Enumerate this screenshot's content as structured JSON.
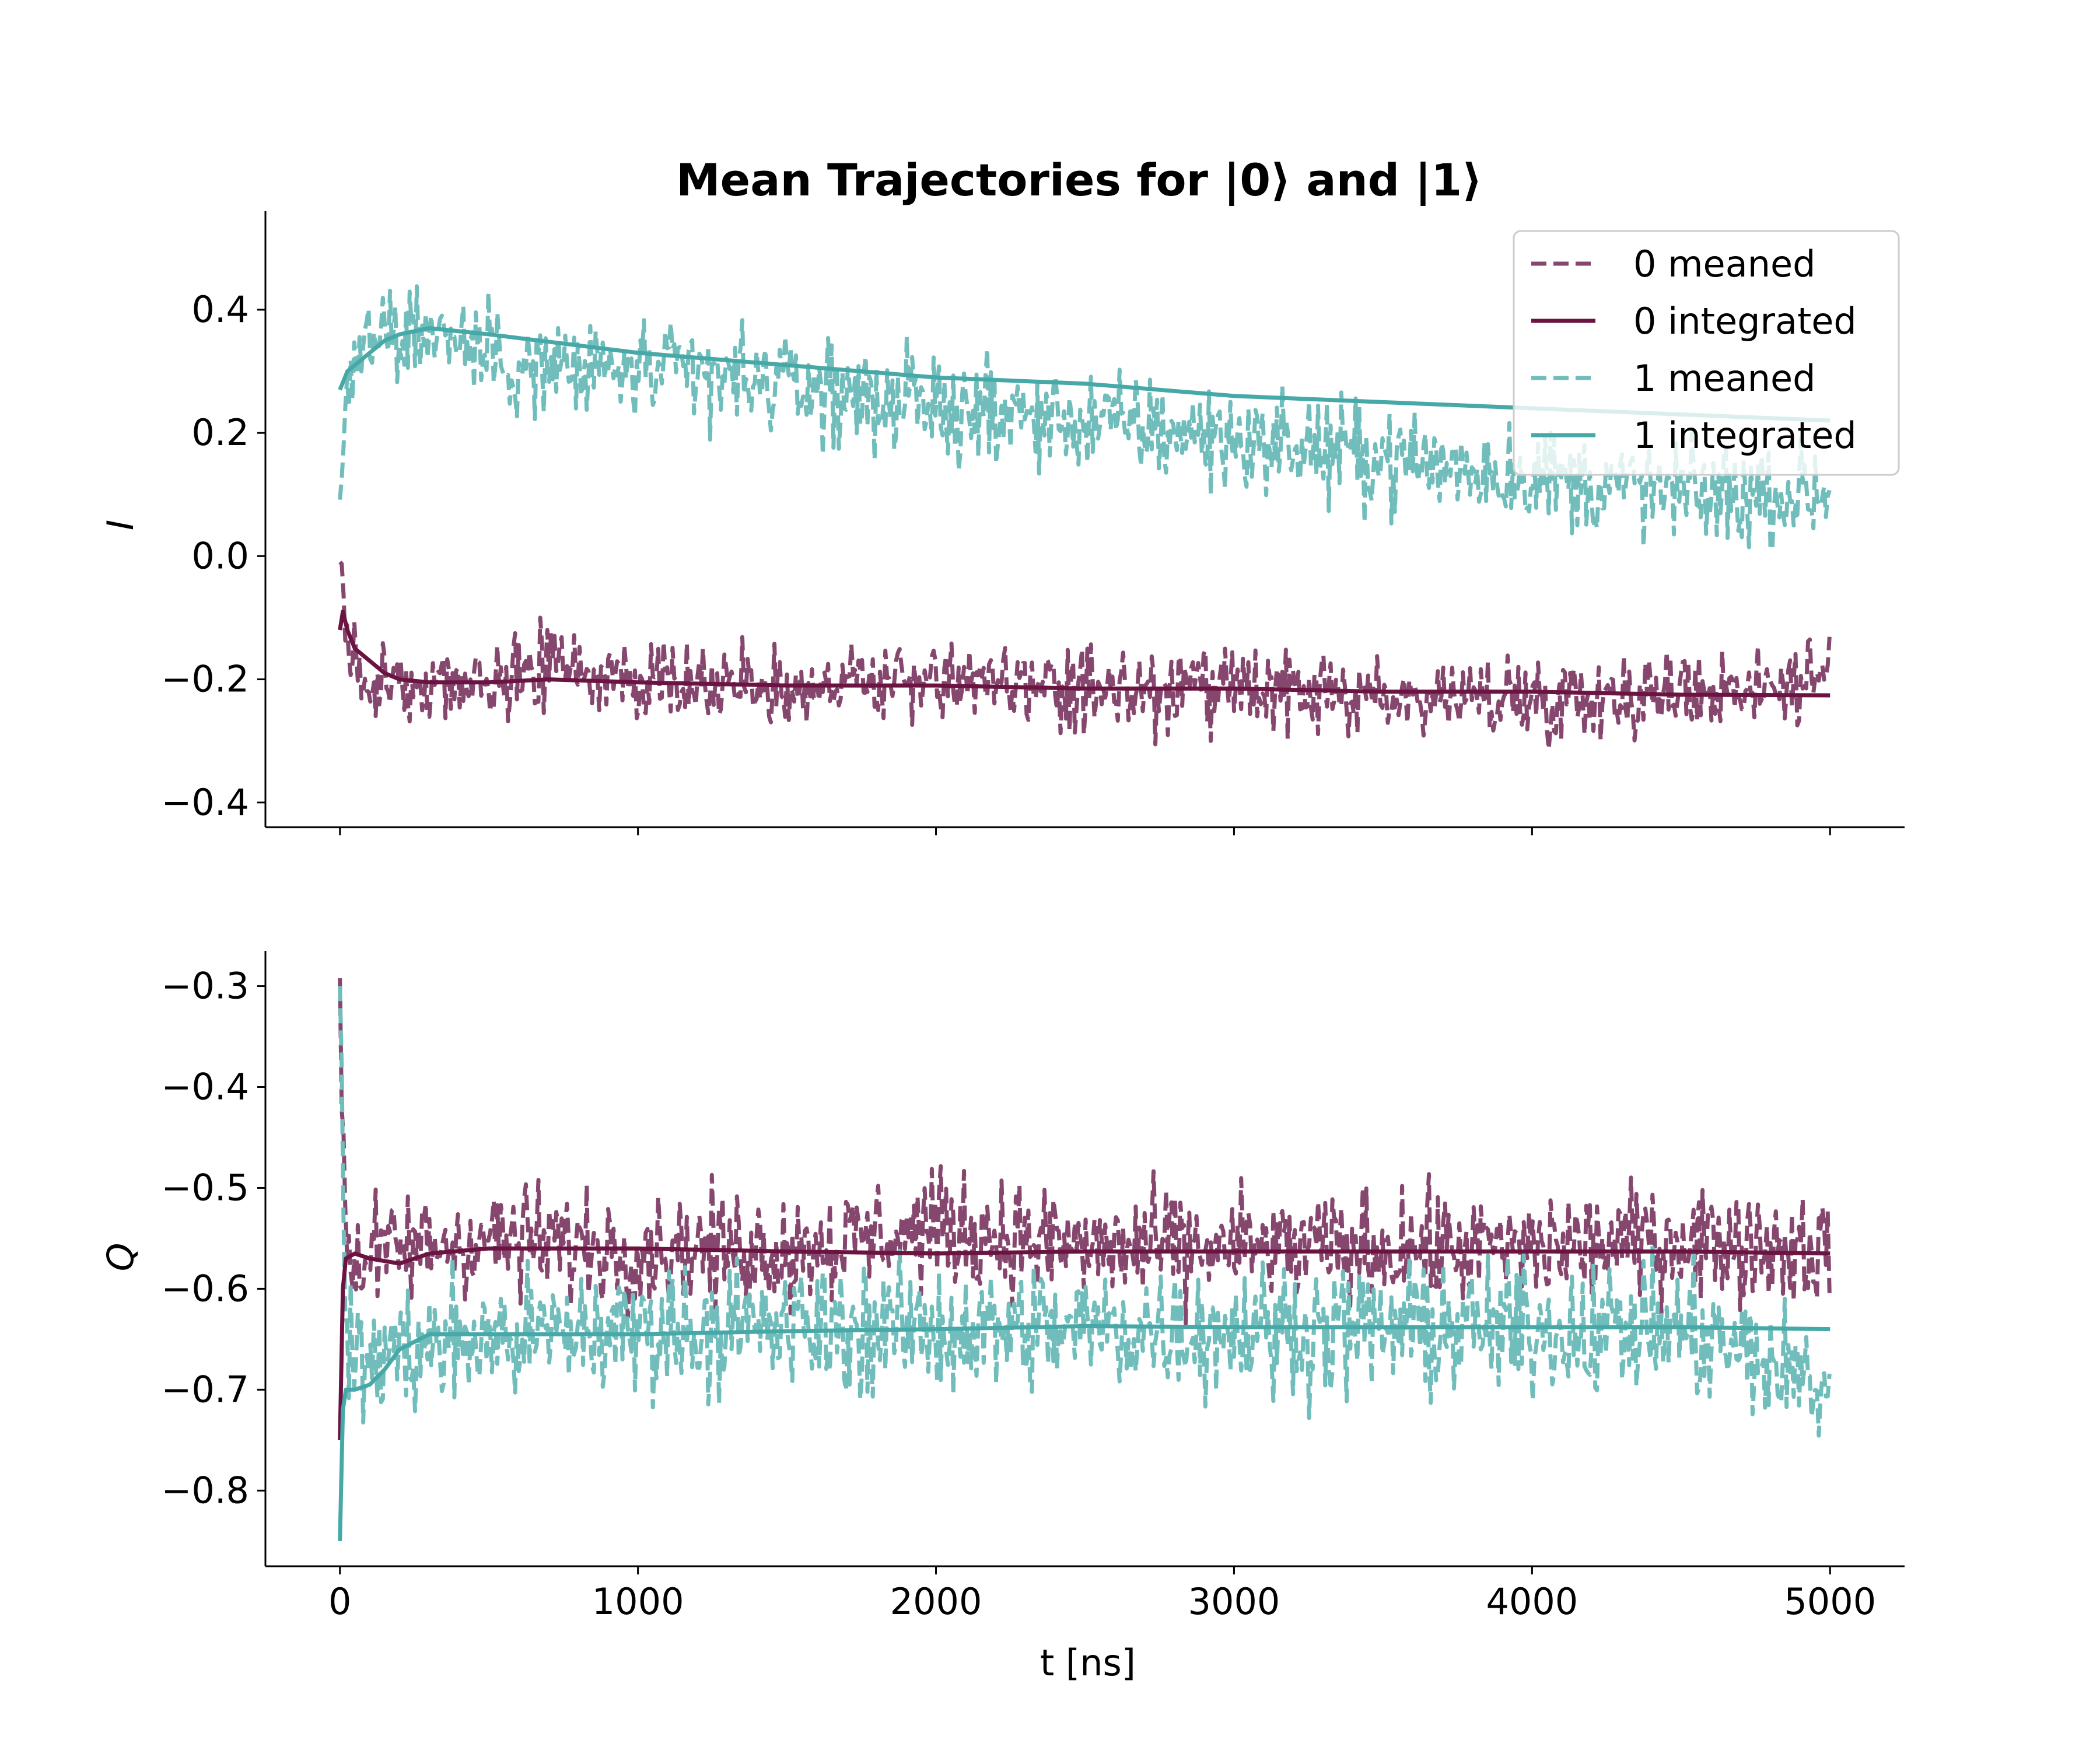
{
  "chart_data": {
    "type": "line",
    "title": "Mean Trajectories for |0⟩ and |1⟩",
    "xlabel": "t [ns]",
    "xlim": [
      -250,
      5250
    ],
    "xticks": [
      0,
      1000,
      2000,
      3000,
      4000,
      5000
    ],
    "grid": false,
    "legend_position": "top-right",
    "colors": {
      "state0": "#6b1442",
      "state0_dashed": "#86476e",
      "state1": "#46a9a8",
      "state1_dashed": "#70bdbb"
    },
    "legend": [
      {
        "label": "0 meaned",
        "style": "dashed",
        "series": "0"
      },
      {
        "label": "0 integrated",
        "style": "solid",
        "series": "0"
      },
      {
        "label": "1 meaned",
        "style": "dashed",
        "series": "1"
      },
      {
        "label": "1 integrated",
        "style": "solid",
        "series": "1"
      }
    ],
    "panels": [
      {
        "id": "I",
        "ylabel": "I",
        "ylim": [
          -0.44,
          0.56
        ],
        "yticks": [
          {
            "value": 0.4,
            "label": "0.4"
          },
          {
            "value": 0.2,
            "label": "0.2"
          },
          {
            "value": 0.0,
            "label": "0.0"
          },
          {
            "value": -0.2,
            "label": "−0.2"
          },
          {
            "value": -0.4,
            "label": "−0.4"
          }
        ],
        "series": [
          {
            "name": "0 meaned",
            "state": "0",
            "style": "dashed",
            "x": [
              0,
              25,
              50,
              100,
              150,
              200,
              300,
              500,
              700,
              1000,
              1500,
              2000,
              2500,
              3000,
              3500,
              4000,
              4500,
              5000
            ],
            "y": [
              -0.02,
              -0.12,
              -0.17,
              -0.22,
              -0.2,
              -0.21,
              -0.22,
              -0.2,
              -0.18,
              -0.2,
              -0.21,
              -0.2,
              -0.22,
              -0.22,
              -0.23,
              -0.23,
              -0.22,
              -0.2
            ],
            "noise_amplitude": 0.07
          },
          {
            "name": "0 integrated",
            "state": "0",
            "style": "solid",
            "x": [
              0,
              10,
              25,
              50,
              100,
              150,
              200,
              300,
              500,
              700,
              1000,
              1500,
              2000,
              2500,
              3000,
              3500,
              4000,
              4500,
              5000
            ],
            "y": [
              -0.12,
              -0.09,
              -0.12,
              -0.15,
              -0.17,
              -0.19,
              -0.2,
              -0.205,
              -0.205,
              -0.2,
              -0.205,
              -0.21,
              -0.21,
              -0.215,
              -0.215,
              -0.22,
              -0.22,
              -0.225,
              -0.226
            ],
            "noise_amplitude": 0
          },
          {
            "name": "1 meaned",
            "state": "1",
            "style": "dashed",
            "x": [
              0,
              25,
              50,
              100,
              150,
              200,
              300,
              500,
              700,
              1000,
              1500,
              2000,
              2500,
              3000,
              3500,
              4000,
              4500,
              5000
            ],
            "y": [
              0.1,
              0.28,
              0.31,
              0.37,
              0.38,
              0.36,
              0.37,
              0.33,
              0.3,
              0.3,
              0.28,
              0.24,
              0.22,
              0.19,
              0.16,
              0.13,
              0.1,
              0.1
            ],
            "noise_amplitude": 0.09
          },
          {
            "name": "1 integrated",
            "state": "1",
            "style": "solid",
            "x": [
              0,
              25,
              50,
              100,
              150,
              200,
              300,
              500,
              1000,
              1500,
              2000,
              2500,
              3000,
              3500,
              4000,
              4500,
              5000
            ],
            "y": [
              0.27,
              0.3,
              0.31,
              0.33,
              0.35,
              0.36,
              0.37,
              0.36,
              0.33,
              0.31,
              0.29,
              0.28,
              0.26,
              0.25,
              0.24,
              0.23,
              0.22
            ],
            "noise_amplitude": 0
          }
        ]
      },
      {
        "id": "Q",
        "ylabel": "Q",
        "ylim": [
          -0.875,
          -0.265
        ],
        "yticks": [
          {
            "value": -0.3,
            "label": "−0.3"
          },
          {
            "value": -0.4,
            "label": "−0.4"
          },
          {
            "value": -0.5,
            "label": "−0.5"
          },
          {
            "value": -0.6,
            "label": "−0.6"
          },
          {
            "value": -0.7,
            "label": "−0.7"
          },
          {
            "value": -0.8,
            "label": "−0.8"
          }
        ],
        "series": [
          {
            "name": "0 meaned",
            "state": "0",
            "style": "dashed",
            "x": [
              0,
              10,
              25,
              50,
              100,
              200,
              500,
              1000,
              1500,
              2000,
              2500,
              3000,
              3500,
              4000,
              4500,
              5000
            ],
            "y": [
              -0.29,
              -0.45,
              -0.55,
              -0.58,
              -0.57,
              -0.56,
              -0.55,
              -0.56,
              -0.56,
              -0.54,
              -0.56,
              -0.56,
              -0.56,
              -0.56,
              -0.55,
              -0.56
            ],
            "noise_amplitude": 0.06
          },
          {
            "name": "0 integrated",
            "state": "0",
            "style": "solid",
            "x": [
              0,
              10,
              20,
              50,
              100,
              200,
              300,
              500,
              1000,
              1500,
              2000,
              2500,
              3000,
              3500,
              4000,
              4500,
              5000
            ],
            "y": [
              -0.75,
              -0.6,
              -0.57,
              -0.565,
              -0.57,
              -0.575,
              -0.565,
              -0.56,
              -0.56,
              -0.563,
              -0.565,
              -0.563,
              -0.563,
              -0.563,
              -0.563,
              -0.563,
              -0.565
            ],
            "noise_amplitude": 0
          },
          {
            "name": "1 meaned",
            "state": "1",
            "style": "dashed",
            "x": [
              0,
              10,
              25,
              50,
              100,
              200,
              500,
              1000,
              1500,
              2000,
              2500,
              3000,
              3500,
              4000,
              4500,
              5000
            ],
            "y": [
              -0.3,
              -0.5,
              -0.65,
              -0.68,
              -0.67,
              -0.66,
              -0.65,
              -0.64,
              -0.64,
              -0.64,
              -0.64,
              -0.64,
              -0.64,
              -0.64,
              -0.64,
              -0.7
            ],
            "noise_amplitude": 0.07
          },
          {
            "name": "1 integrated",
            "state": "1",
            "style": "solid",
            "x": [
              0,
              10,
              20,
              50,
              100,
              150,
              200,
              300,
              500,
              1000,
              1500,
              2000,
              2500,
              3000,
              3500,
              4000,
              4500,
              5000
            ],
            "y": [
              -0.85,
              -0.72,
              -0.7,
              -0.7,
              -0.695,
              -0.68,
              -0.66,
              -0.645,
              -0.645,
              -0.645,
              -0.642,
              -0.64,
              -0.637,
              -0.638,
              -0.638,
              -0.638,
              -0.638,
              -0.64
            ],
            "noise_amplitude": 0
          }
        ]
      }
    ]
  }
}
